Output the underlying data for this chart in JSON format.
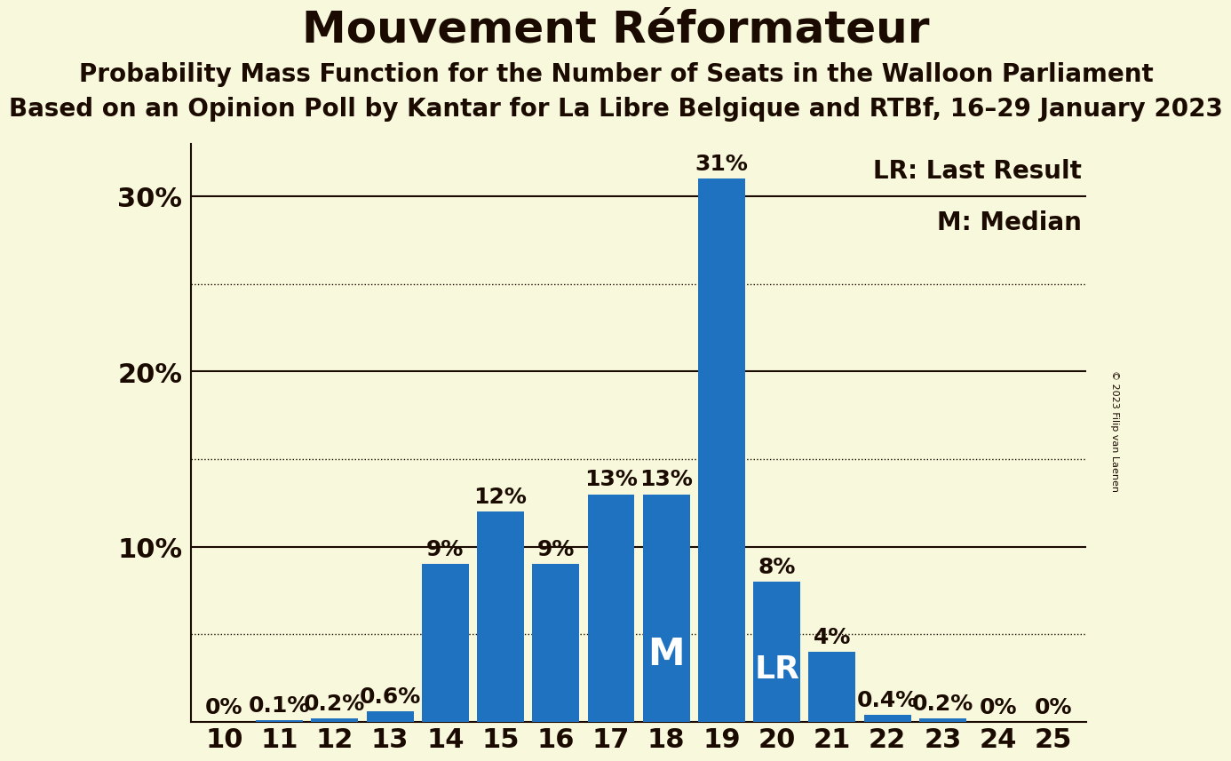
{
  "title": "Mouvement Réformateur",
  "subtitle1": "Probability Mass Function for the Number of Seats in the Walloon Parliament",
  "subtitle2": "Based on an Opinion Poll by Kantar for La Libre Belgique and RTBf, 16–29 January 2023",
  "copyright": "© 2023 Filip van Laenen",
  "seats": [
    10,
    11,
    12,
    13,
    14,
    15,
    16,
    17,
    18,
    19,
    20,
    21,
    22,
    23,
    24,
    25
  ],
  "probabilities": [
    0.0,
    0.1,
    0.2,
    0.6,
    9.0,
    12.0,
    9.0,
    13.0,
    13.0,
    31.0,
    8.0,
    4.0,
    0.4,
    0.2,
    0.0,
    0.0
  ],
  "bar_color": "#1e72c0",
  "bg_color": "#f8f8dc",
  "text_color": "#1a0a00",
  "label_color_outside": "#1a0a00",
  "label_color_inside": "#ffffff",
  "median_seat": 18,
  "last_result_seat": 20,
  "legend_lr": "LR: Last Result",
  "legend_m": "M: Median",
  "ylim": [
    0,
    33
  ],
  "solid_yticks": [
    10,
    20,
    30
  ],
  "dotted_yticks": [
    5,
    15,
    25
  ],
  "title_fontsize": 36,
  "subtitle1_fontsize": 20,
  "subtitle2_fontsize": 20,
  "axis_label_fontsize": 22,
  "bar_label_fontsize": 18,
  "inside_label_fontsize": 26,
  "legend_fontsize": 20
}
